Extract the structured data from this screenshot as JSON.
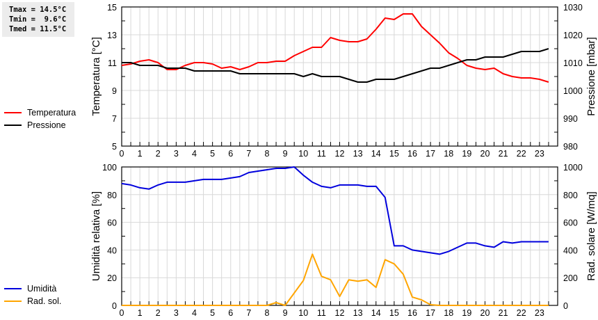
{
  "stats": {
    "tmax": "Tmax = 14.5°C",
    "tmin": "Tmin =  9.6°C",
    "tmed": "Tmed = 11.5°C"
  },
  "legend_top": [
    {
      "label": "Temperatura",
      "color": "#ff0000"
    },
    {
      "label": "Pressione",
      "color": "#000000"
    }
  ],
  "legend_bottom": [
    {
      "label": "Umidità",
      "color": "#0000dd"
    },
    {
      "label": "Rad. sol.",
      "color": "#ffa500"
    }
  ],
  "chart_data": [
    {
      "type": "line",
      "title": "",
      "xlabel": "",
      "ylabel": "Temperatura [°C]",
      "ylabel_right": "Pressione [mbar]",
      "xlim": [
        0,
        24
      ],
      "ylim": [
        5,
        15
      ],
      "ylim_right": [
        980,
        1030
      ],
      "x_ticks": [
        "0",
        "1",
        "2",
        "3",
        "4",
        "5",
        "6",
        "7",
        "8",
        "9",
        "10",
        "11",
        "12",
        "13",
        "14",
        "15",
        "16",
        "17",
        "18",
        "19",
        "20",
        "21",
        "22",
        "23"
      ],
      "y_ticks": [
        "5",
        "7",
        "9",
        "11",
        "13",
        "15"
      ],
      "y_ticks_right": [
        "980",
        "990",
        "1000",
        "1010",
        "1020",
        "1030"
      ],
      "grid": true,
      "legend_position": "left",
      "x": [
        0,
        0.5,
        1,
        1.5,
        2,
        2.5,
        3,
        3.5,
        4,
        4.5,
        5,
        5.5,
        6,
        6.5,
        7,
        7.5,
        8,
        8.5,
        9,
        9.5,
        10,
        10.5,
        11,
        11.5,
        12,
        12.5,
        13,
        13.5,
        14,
        14.5,
        15,
        15.5,
        16,
        16.5,
        17,
        17.5,
        18,
        18.5,
        19,
        19.5,
        20,
        20.5,
        21,
        21.5,
        22,
        22.5,
        23,
        23.5
      ],
      "series": [
        {
          "name": "Temperatura",
          "axis": "left",
          "color": "#ff0000",
          "values": [
            10.8,
            10.9,
            11.1,
            11.2,
            11.0,
            10.5,
            10.5,
            10.8,
            11.0,
            11.0,
            10.9,
            10.6,
            10.7,
            10.5,
            10.7,
            11.0,
            11.0,
            11.1,
            11.1,
            11.5,
            11.8,
            12.1,
            12.1,
            12.8,
            12.6,
            12.5,
            12.5,
            12.7,
            13.4,
            14.2,
            14.1,
            14.5,
            14.5,
            13.6,
            13.0,
            12.4,
            11.7,
            11.3,
            10.8,
            10.6,
            10.5,
            10.6,
            10.2,
            10.0,
            9.9,
            9.9,
            9.8,
            9.6
          ]
        },
        {
          "name": "Pressione",
          "axis": "right",
          "color": "#000000",
          "values": [
            1010,
            1010,
            1009,
            1009,
            1009,
            1008,
            1008,
            1008,
            1007,
            1007,
            1007,
            1007,
            1007,
            1006,
            1006,
            1006,
            1006,
            1006,
            1006,
            1006,
            1005,
            1006,
            1005,
            1005,
            1005,
            1004,
            1003,
            1003,
            1004,
            1004,
            1004,
            1005,
            1006,
            1007,
            1008,
            1008,
            1009,
            1010,
            1011,
            1011,
            1012,
            1012,
            1012,
            1013,
            1014,
            1014,
            1014,
            1015
          ]
        }
      ]
    },
    {
      "type": "line",
      "title": "",
      "xlabel": "",
      "ylabel": "Umidità relativa [%]",
      "ylabel_right": "Rad. solare [W/mq]",
      "xlim": [
        0,
        24
      ],
      "ylim": [
        0,
        100
      ],
      "ylim_right": [
        0,
        1000
      ],
      "x_ticks": [
        "0",
        "1",
        "2",
        "3",
        "4",
        "5",
        "6",
        "7",
        "8",
        "9",
        "10",
        "11",
        "12",
        "13",
        "14",
        "15",
        "16",
        "17",
        "18",
        "19",
        "20",
        "21",
        "22",
        "23"
      ],
      "y_ticks": [
        "0",
        "20",
        "40",
        "60",
        "80",
        "100"
      ],
      "y_ticks_right": [
        "0",
        "200",
        "400",
        "600",
        "800",
        "1000"
      ],
      "grid": true,
      "legend_position": "left",
      "x": [
        0,
        0.5,
        1,
        1.5,
        2,
        2.5,
        3,
        3.5,
        4,
        4.5,
        5,
        5.5,
        6,
        6.5,
        7,
        7.5,
        8,
        8.5,
        9,
        9.5,
        10,
        10.5,
        11,
        11.5,
        12,
        12.5,
        13,
        13.5,
        14,
        14.5,
        15,
        15.5,
        16,
        16.5,
        17,
        17.5,
        18,
        18.5,
        19,
        19.5,
        20,
        20.5,
        21,
        21.5,
        22,
        22.5,
        23,
        23.5
      ],
      "series": [
        {
          "name": "Umidità",
          "axis": "left",
          "color": "#0000dd",
          "values": [
            88,
            87,
            85,
            84,
            87,
            89,
            89,
            89,
            90,
            91,
            91,
            91,
            92,
            93,
            96,
            97,
            98,
            99,
            99,
            100,
            94,
            89,
            86,
            85,
            87,
            87,
            87,
            86,
            86,
            78,
            43,
            43,
            40,
            39,
            38,
            37,
            39,
            42,
            45,
            45,
            43,
            42,
            46,
            45,
            46,
            46,
            46,
            46
          ]
        },
        {
          "name": "Rad. sol.",
          "axis": "right",
          "color": "#ffa500",
          "values": [
            0,
            0,
            0,
            0,
            0,
            0,
            0,
            0,
            0,
            0,
            0,
            0,
            0,
            0,
            0,
            0,
            0,
            20,
            0,
            90,
            180,
            370,
            210,
            185,
            65,
            185,
            175,
            185,
            130,
            330,
            300,
            225,
            60,
            40,
            5,
            0,
            0,
            0,
            0,
            0,
            0,
            0,
            0,
            0,
            0,
            0,
            0,
            0
          ]
        }
      ]
    }
  ]
}
